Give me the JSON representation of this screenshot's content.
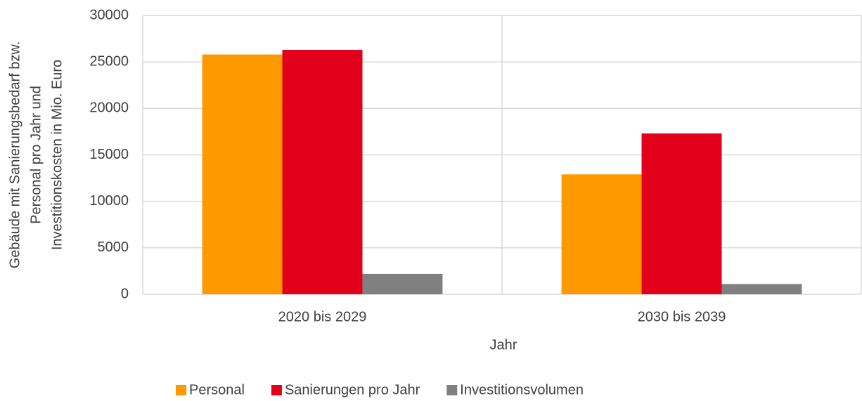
{
  "chart_data": {
    "type": "bar",
    "ylabel": [
      "Gebäude mit Sanierungsbedarf bzw.",
      "Personal pro Jahr und",
      "Investitionskosten in Mio. Euro"
    ],
    "xlabel": "Jahr",
    "categories": [
      "2020 bis 2029",
      "2030 bis 2039"
    ],
    "series": [
      {
        "name": "Personal",
        "color": "#ff9900",
        "values": [
          25800,
          12900
        ]
      },
      {
        "name": "Sanierungen pro Jahr",
        "color": "#e3001b",
        "values": [
          26300,
          17300
        ]
      },
      {
        "name": "Investitionsvolumen",
        "color": "#808080",
        "values": [
          2200,
          1100
        ]
      }
    ],
    "ylim": [
      0,
      30000
    ],
    "yticks": [
      0,
      5000,
      10000,
      15000,
      20000,
      25000,
      30000
    ],
    "grid": true,
    "legend": "bottom"
  }
}
